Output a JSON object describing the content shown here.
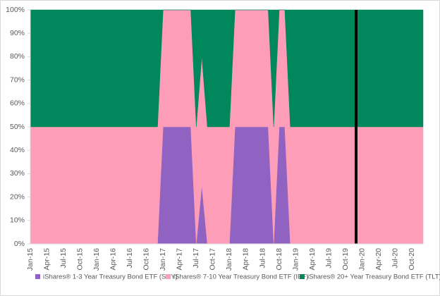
{
  "chart_data": {
    "type": "stacked-area",
    "categories": [
      "Jan-15",
      null,
      null,
      "Apr-15",
      null,
      null,
      "Jul-15",
      null,
      null,
      "Oct-15",
      null,
      null,
      "Jan-16",
      null,
      null,
      "Apr-16",
      null,
      null,
      "Jul-16",
      null,
      null,
      "Oct-16",
      null,
      null,
      "Jan-17",
      null,
      null,
      "Apr-17",
      null,
      null,
      "Jul-17",
      null,
      null,
      "Oct-17",
      null,
      null,
      "Jan-18",
      null,
      null,
      "Apr-18",
      null,
      null,
      "Jul-18",
      null,
      null,
      "Oct-18",
      null,
      null,
      "Jan-19",
      null,
      null,
      "Apr-19",
      null,
      null,
      "Jul-19",
      null,
      null,
      "Oct-19",
      null,
      null,
      "Jan-20",
      null,
      null,
      "Apr-20",
      null,
      null,
      "Jul-20",
      null,
      null,
      "Oct-20",
      null,
      null
    ],
    "series": [
      {
        "name": "iShares® 1-3 Year Treasury Bond ETF (SHY)",
        "color": "#9062c2",
        "values": [
          0,
          0,
          0,
          0,
          0,
          0,
          0,
          0,
          0,
          0,
          0,
          0,
          0,
          0,
          0,
          0,
          0,
          0,
          0,
          0,
          0,
          0,
          0,
          0,
          50,
          50,
          50,
          50,
          50,
          50,
          0,
          25,
          0,
          0,
          0,
          0,
          0,
          50,
          50,
          50,
          50,
          50,
          50,
          50,
          0,
          50,
          50,
          0,
          0,
          0,
          0,
          0,
          0,
          0,
          0,
          0,
          0,
          0,
          0,
          0,
          0,
          0,
          0,
          0,
          0,
          0,
          0,
          0,
          0,
          0,
          0,
          0
        ]
      },
      {
        "name": "iShares® 7-10 Year Treasury Bond ETF (IEF)",
        "color": "#fd9db7",
        "values": [
          50,
          50,
          50,
          50,
          50,
          50,
          50,
          50,
          50,
          50,
          50,
          50,
          50,
          50,
          50,
          50,
          50,
          50,
          50,
          50,
          50,
          50,
          50,
          50,
          50,
          50,
          50,
          50,
          50,
          50,
          50,
          55,
          50,
          50,
          50,
          50,
          50,
          50,
          50,
          50,
          50,
          50,
          50,
          50,
          50,
          50,
          50,
          50,
          50,
          50,
          50,
          50,
          50,
          50,
          50,
          50,
          50,
          50,
          50,
          50,
          50,
          50,
          50,
          50,
          50,
          50,
          50,
          50,
          50,
          50,
          50,
          50
        ]
      },
      {
        "name": "iShares® 20+ Year Treasury Bond ETF (TLT)",
        "color": "#01875c",
        "values": [
          50,
          50,
          50,
          50,
          50,
          50,
          50,
          50,
          50,
          50,
          50,
          50,
          50,
          50,
          50,
          50,
          50,
          50,
          50,
          50,
          50,
          50,
          50,
          50,
          0,
          0,
          0,
          0,
          0,
          0,
          50,
          20,
          50,
          50,
          50,
          50,
          50,
          0,
          0,
          0,
          0,
          0,
          0,
          0,
          50,
          0,
          0,
          50,
          50,
          50,
          50,
          50,
          50,
          50,
          50,
          50,
          50,
          50,
          50,
          50,
          50,
          50,
          50,
          50,
          50,
          50,
          50,
          50,
          50,
          50,
          50,
          50
        ]
      }
    ],
    "ylim": [
      0,
      100
    ],
    "yticks": [
      {
        "value": 0,
        "label": "0%"
      },
      {
        "value": 10,
        "label": "10%"
      },
      {
        "value": 20,
        "label": "20%"
      },
      {
        "value": 30,
        "label": "30%"
      },
      {
        "value": 40,
        "label": "40%"
      },
      {
        "value": 50,
        "label": "50%"
      },
      {
        "value": 60,
        "label": "60%"
      },
      {
        "value": 70,
        "label": "70%"
      },
      {
        "value": 80,
        "label": "80%"
      },
      {
        "value": 90,
        "label": "90%"
      },
      {
        "value": 100,
        "label": "100%"
      }
    ],
    "legend": "bottom"
  }
}
